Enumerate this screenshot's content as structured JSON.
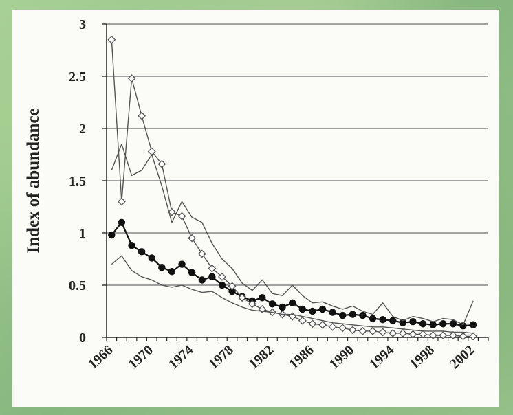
{
  "chart_data": {
    "type": "line",
    "ylabel": "Index of abundance",
    "xlabel": "",
    "ylim": [
      0,
      3
    ],
    "y_ticks": [
      "0",
      "0.5",
      "1",
      "1.5",
      "2",
      "2.5",
      "3"
    ],
    "x_tick_labels": [
      "1966",
      "1970",
      "1974",
      "1978",
      "1982",
      "1986",
      "1990",
      "1994",
      "1998",
      "2002"
    ],
    "grid": true,
    "x": [
      1967,
      1968,
      1969,
      1970,
      1971,
      1972,
      1973,
      1974,
      1975,
      1976,
      1977,
      1978,
      1979,
      1980,
      1981,
      1982,
      1983,
      1984,
      1985,
      1986,
      1987,
      1988,
      1989,
      1990,
      1991,
      1992,
      1993,
      1994,
      1995,
      1996,
      1997,
      1998,
      1999,
      2000,
      2001,
      2002,
      2003
    ],
    "series": [
      {
        "style": "filled-circles",
        "color": "#111111",
        "values": [
          0.98,
          1.1,
          0.88,
          0.82,
          0.76,
          0.67,
          0.63,
          0.7,
          0.62,
          0.55,
          0.58,
          0.5,
          0.44,
          0.39,
          0.35,
          0.38,
          0.32,
          0.29,
          0.33,
          0.27,
          0.25,
          0.27,
          0.24,
          0.21,
          0.22,
          0.21,
          0.18,
          0.17,
          0.16,
          0.14,
          0.15,
          0.13,
          0.12,
          0.13,
          0.13,
          0.11,
          0.12
        ]
      },
      {
        "style": "open-diamonds",
        "color": "#555555",
        "values": [
          2.85,
          1.3,
          2.48,
          2.12,
          1.78,
          1.66,
          1.2,
          1.16,
          0.95,
          0.8,
          0.66,
          0.58,
          0.49,
          0.38,
          0.32,
          0.27,
          0.24,
          0.22,
          0.2,
          0.16,
          0.13,
          0.12,
          0.1,
          0.09,
          0.07,
          0.06,
          0.06,
          0.05,
          0.04,
          0.04,
          0.03,
          0.03,
          0.02,
          0.02,
          0.02,
          0.01,
          0.01
        ]
      },
      {
        "style": "line",
        "color": "#555555",
        "values": [
          1.6,
          1.85,
          1.55,
          1.6,
          1.75,
          1.45,
          1.1,
          1.3,
          1.15,
          1.1,
          0.9,
          0.75,
          0.66,
          0.52,
          0.45,
          0.55,
          0.42,
          0.4,
          0.5,
          0.4,
          0.33,
          0.34,
          0.3,
          0.27,
          0.3,
          0.25,
          0.22,
          0.33,
          0.2,
          0.16,
          0.2,
          0.18,
          0.15,
          0.18,
          0.17,
          0.12,
          0.35
        ]
      },
      {
        "style": "line",
        "color": "#555555",
        "values": [
          0.7,
          0.78,
          0.64,
          0.58,
          0.55,
          0.5,
          0.48,
          0.5,
          0.46,
          0.43,
          0.44,
          0.38,
          0.33,
          0.29,
          0.26,
          0.25,
          0.24,
          0.22,
          0.22,
          0.2,
          0.18,
          0.16,
          0.14,
          0.13,
          0.12,
          0.11,
          0.1,
          0.1,
          0.09,
          0.08,
          0.07,
          0.06,
          0.06,
          0.06,
          0.05,
          0.05,
          0.04
        ]
      }
    ]
  }
}
